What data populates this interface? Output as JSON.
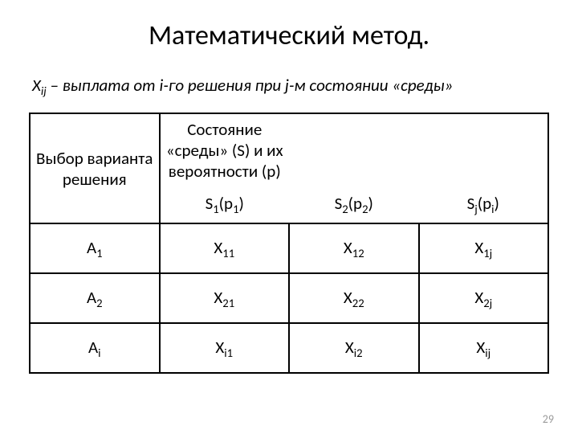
{
  "title": "Математический метод.",
  "description_prefix": "X",
  "description_sub": "ij",
  "description_rest": " – выплата от i-го решения при j-м состоянии «среды»",
  "table": {
    "decision_header": "Выбор варианта решения",
    "state_header": "Состояние «среды» (S) и их вероятности (p)",
    "states": [
      {
        "base": "S",
        "sub1": "1",
        "arg_base": "p",
        "arg_sub": "1"
      },
      {
        "base": "S",
        "sub1": "2",
        "arg_base": "p",
        "arg_sub": "2"
      },
      {
        "base": "S",
        "sub1": "j",
        "arg_base": "p",
        "arg_sub": "i"
      }
    ],
    "rows": [
      {
        "decision_base": "A",
        "decision_sub": "1",
        "cells": [
          {
            "base": "X",
            "sub": "11"
          },
          {
            "base": "X",
            "sub": "12"
          },
          {
            "base": "X",
            "sub": "1j"
          }
        ]
      },
      {
        "decision_base": "A",
        "decision_sub": "2",
        "cells": [
          {
            "base": "X",
            "sub": "21"
          },
          {
            "base": "X",
            "sub": "22"
          },
          {
            "base": "X",
            "sub": "2j"
          }
        ]
      },
      {
        "decision_base": "A",
        "decision_sub": "i",
        "cells": [
          {
            "base": "X",
            "sub": "i1"
          },
          {
            "base": "X",
            "sub": "i2"
          },
          {
            "base": "X",
            "sub": "ij"
          }
        ]
      }
    ]
  },
  "page_number": "29",
  "colors": {
    "text": "#000000",
    "background": "#ffffff",
    "border": "#000000",
    "page_num": "#9a9a9a"
  }
}
